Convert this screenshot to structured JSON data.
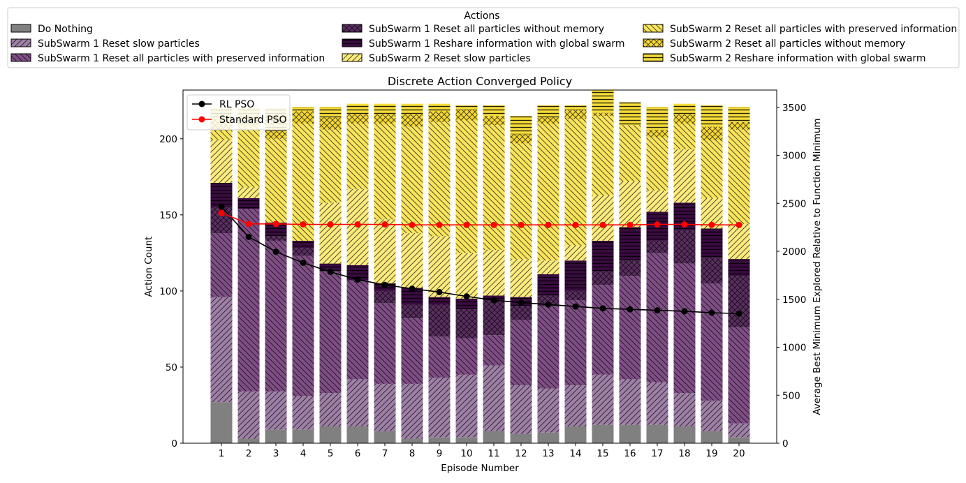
{
  "chart_data": {
    "type": "stacked-bar-with-line",
    "title": "Discrete Action Converged Policy",
    "xlabel": "Episode Number",
    "ylabel": "Action Count",
    "y2label": "Average Best Minimum Explored Relative to Function Minimum",
    "ylim": [
      0,
      232
    ],
    "y2lim": [
      0,
      3680
    ],
    "yticks": [
      0,
      50,
      100,
      150,
      200
    ],
    "y2ticks": [
      0,
      500,
      1000,
      1500,
      2000,
      2500,
      3000,
      3500
    ],
    "categories": [
      "1",
      "2",
      "3",
      "4",
      "5",
      "6",
      "7",
      "8",
      "9",
      "10",
      "11",
      "12",
      "13",
      "14",
      "15",
      "16",
      "17",
      "18",
      "19",
      "20"
    ],
    "legend_title": "Actions",
    "series": [
      {
        "name": "Do Nothing",
        "color": "#808080",
        "hatch": "none",
        "values": [
          27,
          3,
          9,
          9,
          11,
          11,
          8,
          3,
          4,
          4,
          8,
          6,
          7,
          11,
          12,
          12,
          12,
          11,
          8,
          4
        ]
      },
      {
        "name": "SubSwarm 1 Reset slow particles",
        "color": "#9e7fa6",
        "hatch": "//",
        "values": [
          69,
          31,
          25,
          22,
          22,
          31,
          31,
          36,
          39,
          41,
          43,
          32,
          29,
          27,
          33,
          30,
          28,
          22,
          20,
          9
        ]
      },
      {
        "name": "SubSwarm 1 Reset all particles with preserved information",
        "color": "#7e4e85",
        "hatch": "\\\\",
        "values": [
          42,
          120,
          99,
          92,
          80,
          65,
          53,
          43,
          27,
          24,
          20,
          43,
          54,
          56,
          59,
          68,
          85,
          85,
          77,
          63
        ]
      },
      {
        "name": "SubSwarm 1 Reset all particles without memory",
        "color": "#5a2f60",
        "hatch": "xx",
        "values": [
          17,
          0,
          3,
          5,
          0,
          0,
          8,
          9,
          21,
          19,
          23,
          9,
          7,
          6,
          9,
          10,
          8,
          22,
          17,
          34
        ]
      },
      {
        "name": "SubSwarm 1 Reshare information with global swarm",
        "color": "#3b0b42",
        "hatch": "--",
        "values": [
          16,
          7,
          9,
          5,
          5,
          10,
          5,
          11,
          5,
          7,
          3,
          6,
          14,
          20,
          20,
          22,
          19,
          18,
          19,
          11
        ]
      },
      {
        "name": "SubSwarm 2 Reset slow particles",
        "color": "#fbeb7e",
        "hatch": "//",
        "values": [
          28,
          7,
          0,
          0,
          40,
          50,
          42,
          36,
          40,
          30,
          30,
          25,
          9,
          10,
          30,
          30,
          14,
          35,
          20,
          23
        ]
      },
      {
        "name": "SubSwarm 2 Reset all particles with preserved information",
        "color": "#f9e55d",
        "hatch": "\\\\",
        "values": [
          6,
          40,
          55,
          77,
          48,
          43,
          63,
          70,
          75,
          87,
          82,
          76,
          90,
          83,
          52,
          37,
          35,
          17,
          38,
          62
        ]
      },
      {
        "name": "SubSwarm 2 Reset all particles without memory",
        "color": "#f5d835",
        "hatch": "xx",
        "values": [
          8,
          0,
          5,
          8,
          8,
          6,
          6,
          8,
          7,
          7,
          6,
          6,
          4,
          6,
          2,
          0,
          5,
          6,
          9,
          5
        ]
      },
      {
        "name": "SubSwarm 2 Reshare information with global swarm",
        "color": "#f7dd3a",
        "hatch": "--",
        "values": [
          7,
          12,
          15,
          3,
          7,
          7,
          7,
          7,
          5,
          3,
          7,
          12,
          8,
          3,
          15,
          15,
          15,
          7,
          14,
          10
        ]
      }
    ],
    "lines": [
      {
        "name": "RL PSO",
        "color": "#000000",
        "values": [
          2465,
          2150,
          1995,
          1880,
          1785,
          1705,
          1650,
          1610,
          1575,
          1530,
          1490,
          1465,
          1445,
          1425,
          1405,
          1395,
          1385,
          1375,
          1360,
          1350
        ]
      },
      {
        "name": "Standard PSO",
        "color": "#ff0000",
        "values": [
          2400,
          2285,
          2285,
          2280,
          2280,
          2280,
          2280,
          2275,
          2275,
          2275,
          2275,
          2275,
          2275,
          2275,
          2275,
          2275,
          2280,
          2280,
          2275,
          2275
        ]
      }
    ]
  }
}
